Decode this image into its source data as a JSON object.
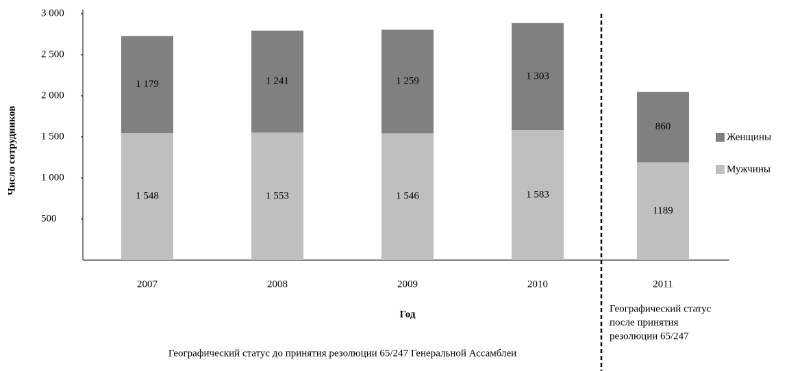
{
  "chart_data": {
    "type": "stacked_bar",
    "y_label": "Число сотрудников",
    "x_label": "Год",
    "categories": [
      "2007",
      "2008",
      "2009",
      "2010",
      "2011"
    ],
    "series": [
      {
        "name": "Мужчины",
        "color": "#bfbfbf",
        "values": [
          1548,
          1553,
          1546,
          1583,
          1189
        ],
        "value_labels": [
          "1 548",
          "1 553",
          "1 546",
          "1 583",
          "1189"
        ]
      },
      {
        "name": "Женщины",
        "color": "#808080",
        "values": [
          1179,
          1241,
          1259,
          1303,
          860
        ],
        "value_labels": [
          "1 179",
          "1 241",
          "1 259",
          "1 303",
          "860"
        ]
      }
    ],
    "ylim": [
      0,
      3000
    ],
    "yticks": [
      500,
      {
        "value": 1000,
        "label": "1 000"
      },
      {
        "value": 1500,
        "label": "1 500"
      },
      {
        "value": 2000,
        "label": "2 000"
      },
      {
        "value": 2500,
        "label": "2 500"
      },
      {
        "value": 3000,
        "label": "3 000"
      }
    ],
    "legend": "right",
    "annotations": [
      "Географический статус до принятия резолюции 65/247 Генеральной Ассамблеи"
    ],
    "annotation_right": [
      "Географический статус",
      "после принятия",
      "резолюции 65/247"
    ]
  }
}
